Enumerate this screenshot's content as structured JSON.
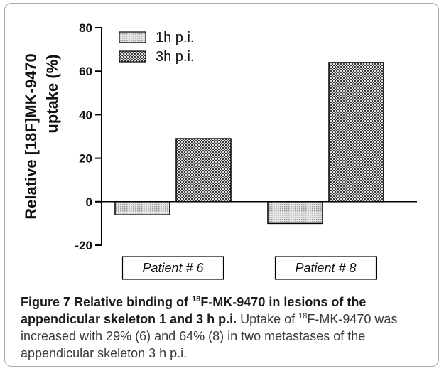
{
  "chart_data": {
    "type": "bar",
    "categories": [
      "Patient # 6",
      "Patient # 8"
    ],
    "series": [
      {
        "name": "1h p.i.",
        "values": [
          -6,
          -10
        ],
        "pattern": "fine-dots",
        "color": "#d4d4d4"
      },
      {
        "name": "3h p.i.",
        "values": [
          29,
          64
        ],
        "pattern": "checker",
        "color": "#6e6e6e"
      }
    ],
    "ylabel_line1": "Relative [18F]MK-9470",
    "ylabel_line2": "uptake (%)",
    "ylim": [
      -20,
      80
    ],
    "yticks": [
      80,
      60,
      40,
      20,
      0,
      -20
    ],
    "legend_position": "top-left",
    "grid": false
  },
  "caption": {
    "figure_label": "Figure 7",
    "bold_a": "Relative binding of",
    "sup_a": "18",
    "bold_b": "F-MK-9470 in lesions of the appendicular skeleton 1 and 3 h p.i.",
    "text_a": "Uptake of",
    "sup_b": "18",
    "text_b": "F-MK-9470 was increased with 29% (6) and 64% (8) in two metastases of the appendicular skeleton 3 h p.i."
  }
}
